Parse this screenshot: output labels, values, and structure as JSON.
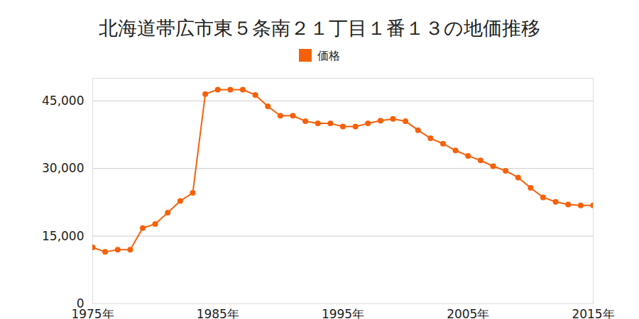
{
  "chart_data": {
    "type": "line",
    "title": "北海道帯広市東５条南２１丁目１番１３の地価推移",
    "x": [
      1975,
      1976,
      1977,
      1978,
      1979,
      1980,
      1981,
      1982,
      1983,
      1984,
      1985,
      1986,
      1987,
      1988,
      1989,
      1990,
      1991,
      1992,
      1993,
      1994,
      1995,
      1996,
      1997,
      1998,
      1999,
      2000,
      2001,
      2002,
      2003,
      2004,
      2005,
      2006,
      2007,
      2008,
      2009,
      2010,
      2011,
      2012,
      2013,
      2014,
      2015
    ],
    "series": [
      {
        "name": "価格",
        "color": "#f5610a",
        "marker": "circle",
        "values": [
          12500,
          11500,
          12000,
          12000,
          16800,
          17700,
          20200,
          22800,
          24600,
          46500,
          47500,
          47500,
          47500,
          46300,
          43800,
          41700,
          41700,
          40500,
          40000,
          40000,
          39300,
          39300,
          40000,
          40600,
          41000,
          40500,
          38500,
          36700,
          35500,
          34000,
          32800,
          31800,
          30500,
          29500,
          28000,
          25700,
          23600,
          22600,
          22000,
          21800,
          21800
        ]
      }
    ],
    "xlim": [
      1975,
      2015
    ],
    "xticks": [
      {
        "value": 1975,
        "label": "1975年"
      },
      {
        "value": 1985,
        "label": "1985年"
      },
      {
        "value": 1995,
        "label": "1995年"
      },
      {
        "value": 2005,
        "label": "2005年"
      },
      {
        "value": 2015,
        "label": "2015年"
      }
    ],
    "ylim": [
      0,
      50000
    ],
    "yticks": [
      0,
      {
        "value": 15000,
        "label": "15,000"
      },
      {
        "value": 30000,
        "label": "30,000"
      },
      {
        "value": 45000,
        "label": "45,000"
      }
    ],
    "grid": true,
    "legend": "top"
  }
}
